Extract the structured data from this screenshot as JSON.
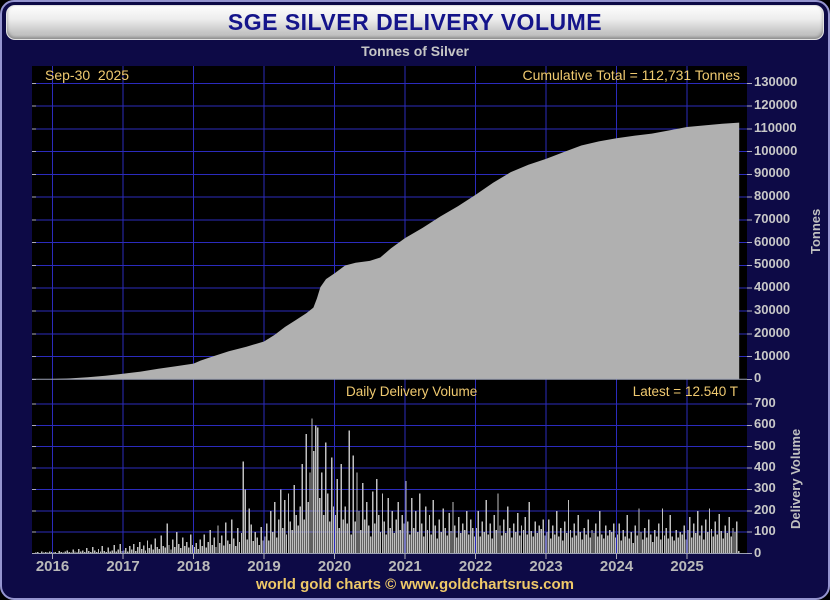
{
  "header": {
    "title": "SGE SILVER DELIVERY VOLUME",
    "subtitle": "Tonnes of Silver"
  },
  "footer": {
    "credit": "world gold charts © www.goldchartsrus.com"
  },
  "x_axis_years": [
    2016,
    2017,
    2018,
    2019,
    2020,
    2021,
    2022,
    2023,
    2024,
    2025
  ],
  "colors": {
    "frame_bg": "#0d0a46",
    "frame_border": "#9595cf",
    "plot_bg": "#000000",
    "gridline": "#2b2bbd",
    "area_fill": "#b0b0b0",
    "bar_fill": "#bfbfbf",
    "gold_text": "#f0ca70",
    "silver_text": "#c8c8c8",
    "title_text": "#14148a",
    "baseline": "#9aa0b4",
    "tick_mark": "#aab"
  },
  "chart_data": [
    {
      "type": "area",
      "name": "cumulative-silver-delivery",
      "title": "Tonnes of Silver",
      "ylabel": "Tonnes",
      "date_label": "Sep-30  2025",
      "annotation": "Cumulative Total = 112,731 Tonnes",
      "cumulative_total_tonnes": 112731,
      "xlim": [
        2015.71,
        2025.85
      ],
      "ylim": [
        0,
        137500
      ],
      "y_ticks": [
        0,
        10000,
        20000,
        30000,
        40000,
        50000,
        60000,
        70000,
        80000,
        90000,
        100000,
        110000,
        120000,
        130000
      ],
      "x": [
        2015.71,
        2016.0,
        2016.25,
        2016.5,
        2016.75,
        2017.0,
        2017.25,
        2017.5,
        2017.75,
        2018.0,
        2018.1,
        2018.25,
        2018.5,
        2018.75,
        2019.0,
        2019.15,
        2019.3,
        2019.45,
        2019.6,
        2019.7,
        2019.75,
        2019.8,
        2019.88,
        2020.0,
        2020.15,
        2020.3,
        2020.5,
        2020.65,
        2020.8,
        2021.0,
        2021.25,
        2021.5,
        2021.75,
        2022.0,
        2022.25,
        2022.5,
        2022.75,
        2023.0,
        2023.25,
        2023.5,
        2023.75,
        2024.0,
        2024.25,
        2024.5,
        2024.75,
        2025.0,
        2025.25,
        2025.5,
        2025.74
      ],
      "y": [
        50,
        150,
        400,
        900,
        1600,
        2400,
        3400,
        4600,
        5700,
        6900,
        8200,
        9800,
        12300,
        14300,
        16600,
        19500,
        23000,
        26000,
        29000,
        31500,
        35500,
        40500,
        44000,
        46500,
        50000,
        51200,
        52000,
        53500,
        57500,
        62000,
        66500,
        71500,
        76000,
        81000,
        86300,
        91000,
        94200,
        96800,
        99800,
        102700,
        104500,
        105900,
        107000,
        107900,
        109300,
        110800,
        111500,
        112200,
        112731
      ]
    },
    {
      "type": "bar",
      "name": "daily-delivery-volume",
      "title": "Daily Delivery Volume",
      "ylabel": "Delivery Volume",
      "annotation": "Latest = 12.540 T",
      "latest_tonnes": 12.54,
      "ylim": [
        0,
        735
      ],
      "y_ticks": [
        0,
        100,
        200,
        300,
        400,
        500,
        600,
        700
      ],
      "bars_per_year": 36,
      "series_by_year": [
        {
          "year": 2015,
          "values": [
            0,
            0,
            0,
            0,
            0,
            0,
            0,
            0,
            0,
            0,
            0,
            0,
            0,
            0,
            0,
            0,
            0,
            0,
            0,
            0,
            0,
            0,
            0,
            0,
            0,
            0,
            0,
            4,
            7,
            3,
            9,
            5,
            8,
            4,
            10,
            6
          ]
        },
        {
          "year": 2016,
          "values": [
            5,
            8,
            3,
            12,
            6,
            4,
            9,
            15,
            7,
            5,
            18,
            10,
            6,
            22,
            9,
            14,
            7,
            25,
            11,
            8,
            30,
            13,
            6,
            20,
            9,
            35,
            12,
            7,
            28,
            10,
            15,
            40,
            9,
            18,
            45,
            12
          ]
        },
        {
          "year": 2017,
          "values": [
            15,
            25,
            10,
            35,
            18,
            45,
            12,
            30,
            55,
            20,
            38,
            15,
            60,
            25,
            42,
            18,
            70,
            30,
            22,
            85,
            35,
            28,
            140,
            40,
            18,
            65,
            30,
            100,
            45,
            25,
            75,
            35,
            55,
            28,
            88,
            40
          ]
        },
        {
          "year": 2018,
          "values": [
            30,
            50,
            22,
            65,
            35,
            90,
            28,
            55,
            110,
            40,
            75,
            30,
            130,
            50,
            85,
            38,
            145,
            60,
            45,
            160,
            70,
            35,
            120,
            55,
            95,
            430,
            300,
            65,
            210,
            135,
            58,
            100,
            75,
            40,
            125,
            60
          ]
        },
        {
          "year": 2019,
          "values": [
            80,
            140,
            60,
            200,
            100,
            240,
            75,
            160,
            300,
            120,
            250,
            90,
            280,
            150,
            110,
            320,
            180,
            130,
            220,
            420,
            160,
            560,
            240,
            380,
            632,
            480,
            600,
            590,
            260,
            380,
            180,
            520,
            280,
            150,
            450,
            220
          ]
        },
        {
          "year": 2020,
          "values": [
            180,
            350,
            120,
            420,
            160,
            220,
            140,
            575,
            90,
            460,
            150,
            380,
            200,
            110,
            330,
            160,
            240,
            130,
            80,
            290,
            140,
            350,
            180,
            100,
            280,
            150,
            90,
            260,
            120,
            200,
            95,
            160,
            240,
            110,
            180,
            140
          ]
        },
        {
          "year": 2021,
          "values": [
            340,
            150,
            90,
            260,
            120,
            200,
            100,
            280,
            140,
            80,
            220,
            110,
            180,
            90,
            250,
            130,
            70,
            160,
            100,
            210,
            120,
            85,
            190,
            105,
            240,
            130,
            75,
            170,
            95,
            140,
            110,
            200,
            90,
            160,
            120,
            80
          ]
        },
        {
          "year": 2022,
          "values": [
            120,
            200,
            80,
            150,
            100,
            250,
            90,
            140,
            70,
            180,
            110,
            280,
            130,
            85,
            160,
            95,
            220,
            120,
            75,
            140,
            100,
            190,
            85,
            130,
            110,
            170,
            90,
            240,
            105,
            80,
            150,
            95,
            130,
            115,
            160,
            85
          ]
        },
        {
          "year": 2023,
          "values": [
            100,
            160,
            70,
            130,
            90,
            200,
            80,
            120,
            60,
            150,
            95,
            250,
            110,
            75,
            140,
            85,
            180,
            100,
            65,
            120,
            90,
            160,
            75,
            110,
            95,
            140,
            80,
            200,
            90,
            70,
            130,
            85,
            110,
            100,
            140,
            75
          ]
        },
        {
          "year": 2024,
          "values": [
            90,
            140,
            60,
            110,
            80,
            180,
            70,
            100,
            50,
            130,
            85,
            210,
            100,
            65,
            120,
            75,
            160,
            90,
            55,
            110,
            80,
            140,
            65,
            210,
            85,
            120,
            70,
            180,
            80,
            60,
            110,
            75,
            100,
            90,
            130,
            65
          ]
        },
        {
          "year": 2025,
          "values": [
            110,
            170,
            75,
            140,
            95,
            200,
            85,
            130,
            65,
            160,
            100,
            210,
            115,
            80,
            150,
            90,
            185,
            105,
            70,
            130,
            95,
            170,
            80,
            120,
            100,
            150,
            12.5
          ]
        }
      ]
    }
  ]
}
